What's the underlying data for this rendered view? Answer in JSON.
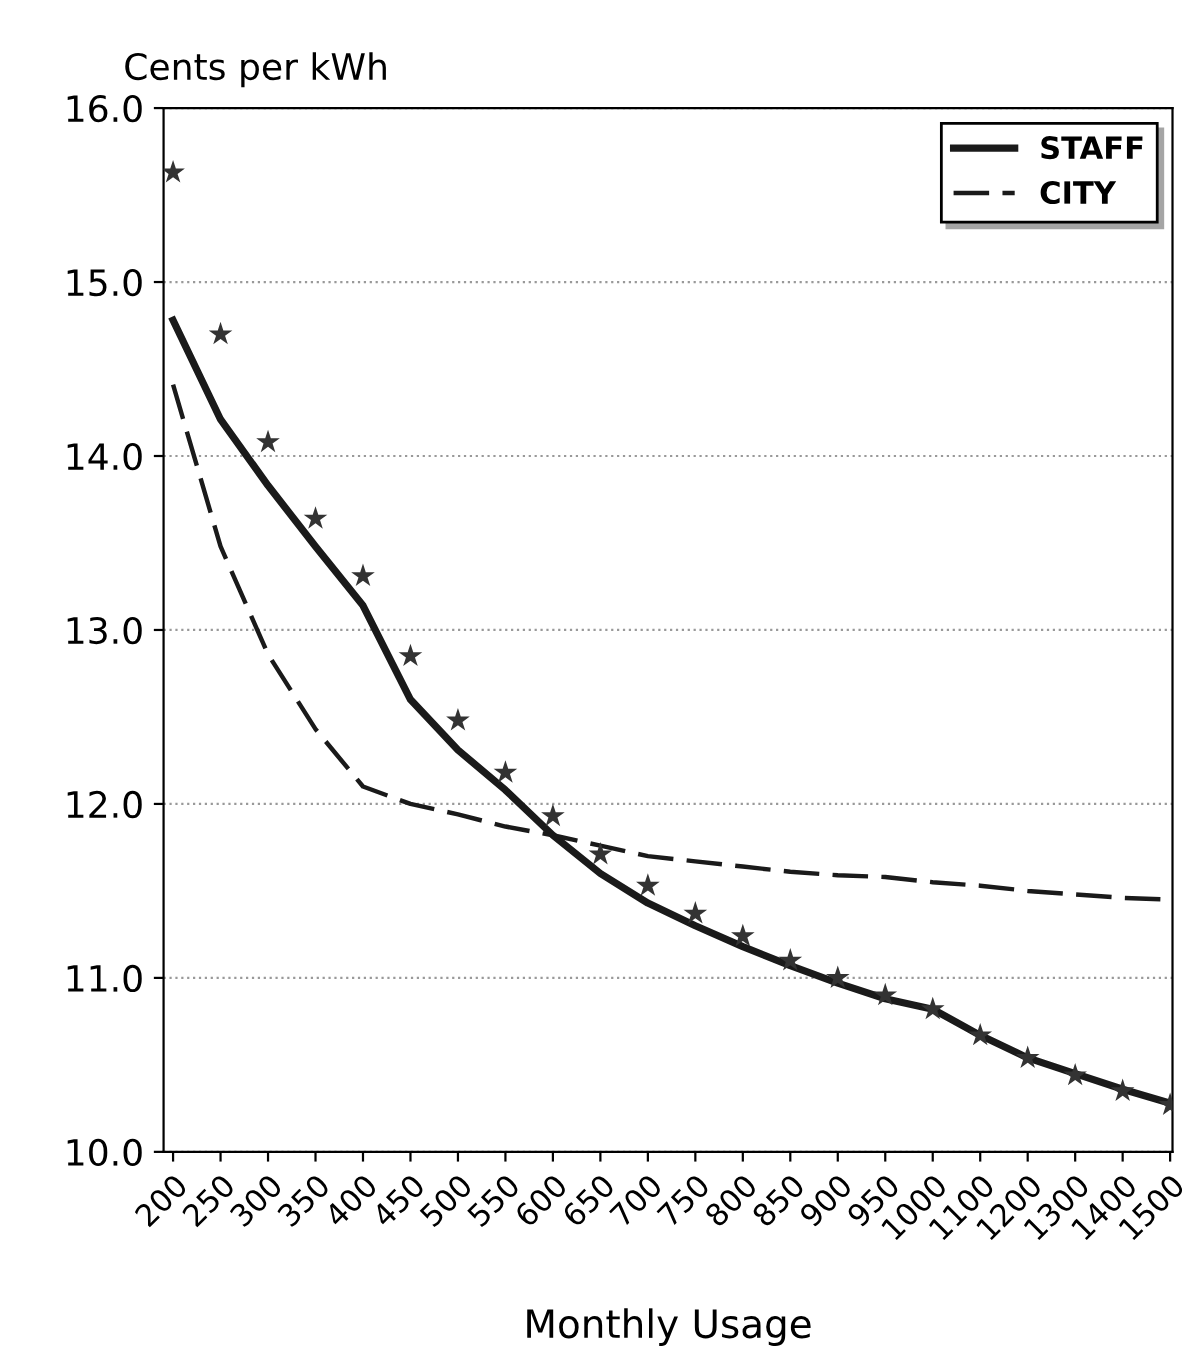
{
  "chart_data": {
    "type": "line",
    "ylabel": "Cents per kWh",
    "xlabel": "Monthly Usage",
    "categories": [
      "200",
      "250",
      "300",
      "350",
      "400",
      "450",
      "500",
      "550",
      "600",
      "650",
      "700",
      "750",
      "800",
      "850",
      "900",
      "950",
      "1000",
      "1100",
      "1200",
      "1300",
      "1400",
      "1500"
    ],
    "series": [
      {
        "name": "STAFF",
        "color": "#1a1a1a",
        "line_style": "solid",
        "values": [
          14.78,
          14.21,
          13.83,
          13.48,
          13.14,
          12.6,
          12.31,
          12.08,
          11.82,
          11.6,
          11.43,
          11.3,
          11.18,
          11.07,
          10.97,
          10.88,
          10.82,
          10.67,
          10.54,
          10.45,
          10.36,
          10.28
        ]
      },
      {
        "name": "CITY",
        "color": "#1a1a1a",
        "line_style": "dashed",
        "values": [
          14.41,
          13.48,
          12.86,
          12.43,
          12.1,
          12.0,
          11.94,
          11.87,
          11.82,
          11.76,
          11.7,
          11.67,
          11.64,
          11.61,
          11.59,
          11.58,
          11.55,
          11.53,
          11.5,
          11.48,
          11.46,
          11.45
        ]
      },
      {
        "color": "#333333",
        "type": "scatter",
        "marker": "star",
        "values": [
          15.63,
          14.7,
          14.08,
          13.64,
          13.31,
          12.85,
          12.48,
          12.18,
          11.93,
          11.71,
          11.53,
          11.37,
          11.24,
          11.1,
          11.0,
          10.9,
          10.82,
          10.67,
          10.54,
          10.44,
          10.35,
          10.27
        ]
      }
    ],
    "ylim": [
      10,
      16
    ],
    "yticks": [
      {
        "value": 10,
        "label": "10.0"
      },
      {
        "value": 11,
        "label": "11.0"
      },
      {
        "value": 12,
        "label": "12.0"
      },
      {
        "value": 13,
        "label": "13.0"
      },
      {
        "value": 14,
        "label": "14.0"
      },
      {
        "value": 15,
        "label": "15.0"
      },
      {
        "value": 16,
        "label": "16.0"
      }
    ],
    "grid": "y",
    "legend": "top right"
  }
}
